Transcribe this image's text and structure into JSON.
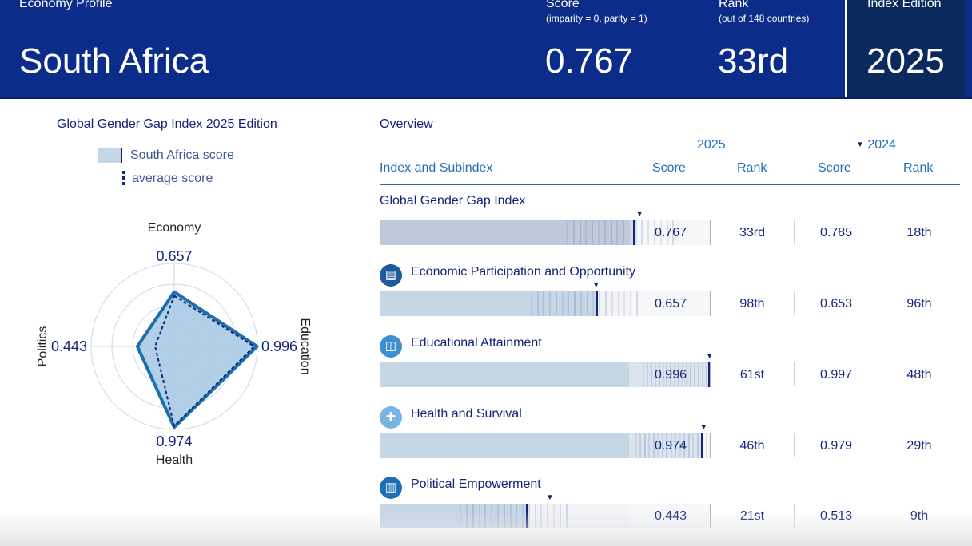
{
  "header": {
    "subtitle": "Economy Profile",
    "country": "South Africa",
    "score_label": "Score",
    "score_note": "(imparity = 0, parity = 1)",
    "score_value": "0.767",
    "rank_label": "Rank",
    "rank_note": "(out of 148 countries)",
    "rank_value": "33rd",
    "edition_label": "Index Edition",
    "edition_value": "2025"
  },
  "left_panel": {
    "title": "Global Gender Gap Index 2025 Edition",
    "legend": {
      "country_score": "South Africa score",
      "average_score": "average score"
    }
  },
  "colors": {
    "header_bg": "#0b2d89",
    "edition_bg": "#0a2a5e",
    "accent": "#1e6fb8",
    "text_dark": "#14237a",
    "radar_fill": "#a9cbe6",
    "radar_stroke": "#1b6fae"
  },
  "chart_data": {
    "type": "radar",
    "title": "Global Gender Gap Index 2025 Edition",
    "axes": [
      "Economy",
      "Education",
      "Health",
      "Politics"
    ],
    "series": [
      {
        "name": "South Africa score",
        "values": [
          0.657,
          0.996,
          0.974,
          0.443
        ]
      },
      {
        "name": "average score",
        "values": [
          0.61,
          0.96,
          0.96,
          0.23
        ]
      }
    ],
    "value_labels": [
      "0.657",
      "0.996",
      "0.974",
      "0.443"
    ],
    "range": [
      0,
      1
    ],
    "rings": [
      0.25,
      0.5,
      0.75,
      1.0
    ]
  },
  "overview": {
    "title": "Overview",
    "year_current": "2025",
    "year_previous": "2024",
    "previous_marker_icon": "down-triangle-icon",
    "columns": {
      "index": "Index and Subindex",
      "score": "Score",
      "rank": "Rank",
      "prev_score": "Score",
      "prev_rank": "Rank"
    },
    "rows": [
      {
        "name": "Global Gender Gap Index",
        "icon": null,
        "score": 0.767,
        "score_text": "0.767",
        "rank": "33rd",
        "prev_score": "0.785",
        "prev_rank": "18th",
        "prev_marker": 0.785
      },
      {
        "name": "Economic Participation and Opportunity",
        "icon": "economy-icon",
        "score": 0.657,
        "score_text": "0.657",
        "rank": "98th",
        "prev_score": "0.653",
        "prev_rank": "96th",
        "prev_marker": 0.653
      },
      {
        "name": "Educational Attainment",
        "icon": "book-icon",
        "score": 0.996,
        "score_text": "0.996",
        "rank": "61st",
        "prev_score": "0.997",
        "prev_rank": "48th",
        "prev_marker": 0.997
      },
      {
        "name": "Health and Survival",
        "icon": "health-cross-icon",
        "score": 0.974,
        "score_text": "0.974",
        "rank": "46th",
        "prev_score": "0.979",
        "prev_rank": "29th",
        "prev_marker": 0.979
      },
      {
        "name": "Political Empowerment",
        "icon": "parliament-icon",
        "score": 0.443,
        "score_text": "0.443",
        "rank": "21st",
        "prev_score": "0.513",
        "prev_rank": "9th",
        "prev_marker": 0.513
      }
    ]
  }
}
